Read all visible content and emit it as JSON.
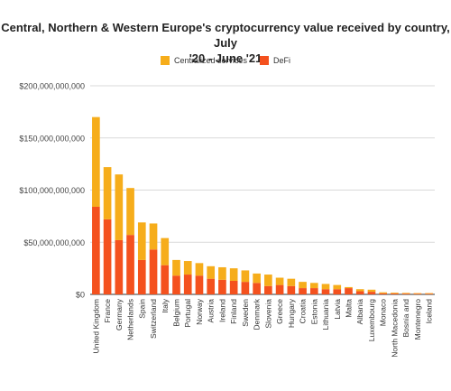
{
  "chart_data": {
    "type": "bar",
    "stacked": true,
    "title_lines": [
      "Central, Northern & Western Europe's cryptocurrency value received by country, July",
      "'20 - June '21"
    ],
    "xlabel": "",
    "ylabel": "",
    "ylim": [
      0,
      200000000000
    ],
    "yticks": [
      0,
      50000000000,
      100000000000,
      150000000000,
      200000000000
    ],
    "ytick_labels": [
      "$0",
      "$50,000,000,000",
      "$100,000,000,000",
      "$150,000,000,000",
      "$200,000,000,000"
    ],
    "grid": true,
    "legend_position": "top",
    "categories": [
      "United Kingdom",
      "France",
      "Germany",
      "Netherlands",
      "Spain",
      "Switzerland",
      "Italy",
      "Belgium",
      "Portugal",
      "Norway",
      "Austria",
      "Ireland",
      "Finland",
      "Sweden",
      "Denmark",
      "Slovenia",
      "Greece",
      "Hungary",
      "Croatia",
      "Estonia",
      "Lithuania",
      "Latvia",
      "Malta",
      "Albania",
      "Luxembourg",
      "Monaco",
      "North Macedonia",
      "Bosnia and",
      "Montenegro",
      "Iceland"
    ],
    "series": [
      {
        "name": "DeFi",
        "color": "#f4511e",
        "values": [
          84000000000,
          72000000000,
          52000000000,
          57000000000,
          33000000000,
          43000000000,
          28000000000,
          18000000000,
          19000000000,
          18000000000,
          15000000000,
          14000000000,
          13000000000,
          12000000000,
          11000000000,
          8000000000,
          9000000000,
          8000000000,
          6000000000,
          6000000000,
          5000000000,
          5000000000,
          6000000000,
          3000000000,
          2500000000,
          1000000000,
          800000000,
          700000000,
          600000000,
          600000000
        ]
      },
      {
        "name": "Centralized services",
        "color": "#f6ad1b",
        "values": [
          86000000000,
          50000000000,
          63000000000,
          45000000000,
          36000000000,
          25000000000,
          26000000000,
          15000000000,
          13000000000,
          12000000000,
          12000000000,
          12000000000,
          12000000000,
          11000000000,
          9000000000,
          11000000000,
          7000000000,
          7000000000,
          6000000000,
          5000000000,
          5000000000,
          4000000000,
          1000000000,
          2000000000,
          2000000000,
          1000000000,
          800000000,
          700000000,
          600000000,
          600000000
        ]
      }
    ]
  }
}
